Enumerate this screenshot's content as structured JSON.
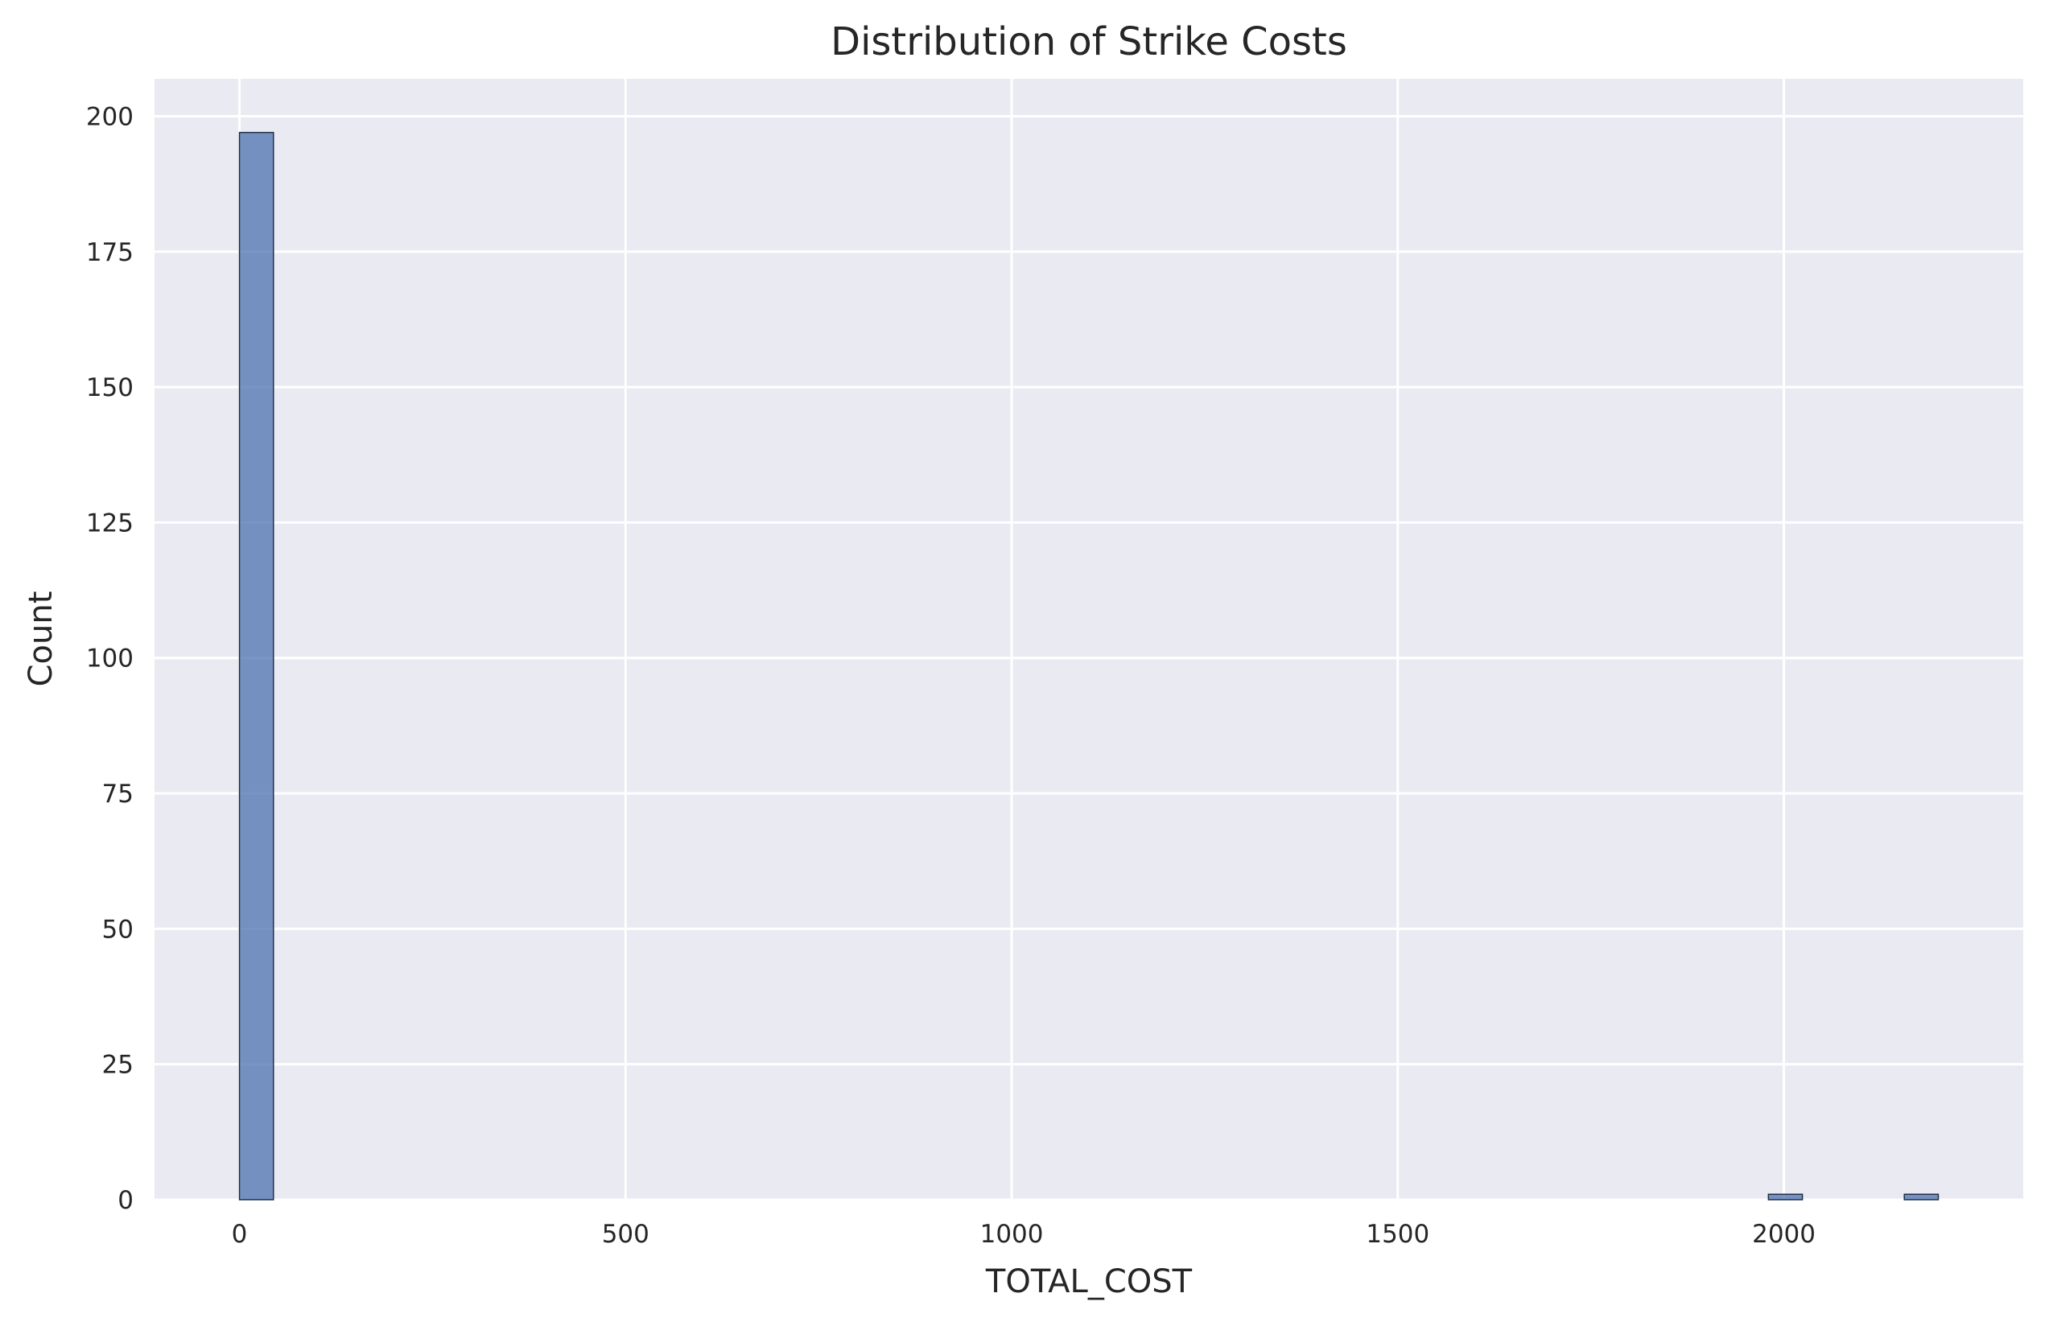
{
  "chart_data": {
    "type": "bar",
    "title": "Distribution of Strike Costs",
    "xlabel": "TOTAL_COST",
    "ylabel": "Count",
    "xlim": [
      -110,
      2310
    ],
    "ylim": [
      0,
      206.9
    ],
    "xticks": [
      0,
      500,
      1000,
      1500,
      2000
    ],
    "xtick_labels": [
      "0",
      "500",
      "1000",
      "1500",
      "2000"
    ],
    "yticks": [
      0,
      25,
      50,
      75,
      100,
      125,
      150,
      175,
      200
    ],
    "ytick_labels": [
      "0",
      "25",
      "50",
      "75",
      "100",
      "125",
      "150",
      "175",
      "200"
    ],
    "grid": true,
    "bin_width": 44,
    "bins": [
      {
        "start": 0,
        "end": 44,
        "count": 197
      },
      {
        "start": 1980,
        "end": 2024,
        "count": 1
      },
      {
        "start": 2156,
        "end": 2200,
        "count": 1
      }
    ],
    "colors": {
      "bar_fill": "#4c72b0",
      "bar_edge": "#1f2d46",
      "background": "#eaeaf2",
      "grid": "#ffffff"
    }
  }
}
